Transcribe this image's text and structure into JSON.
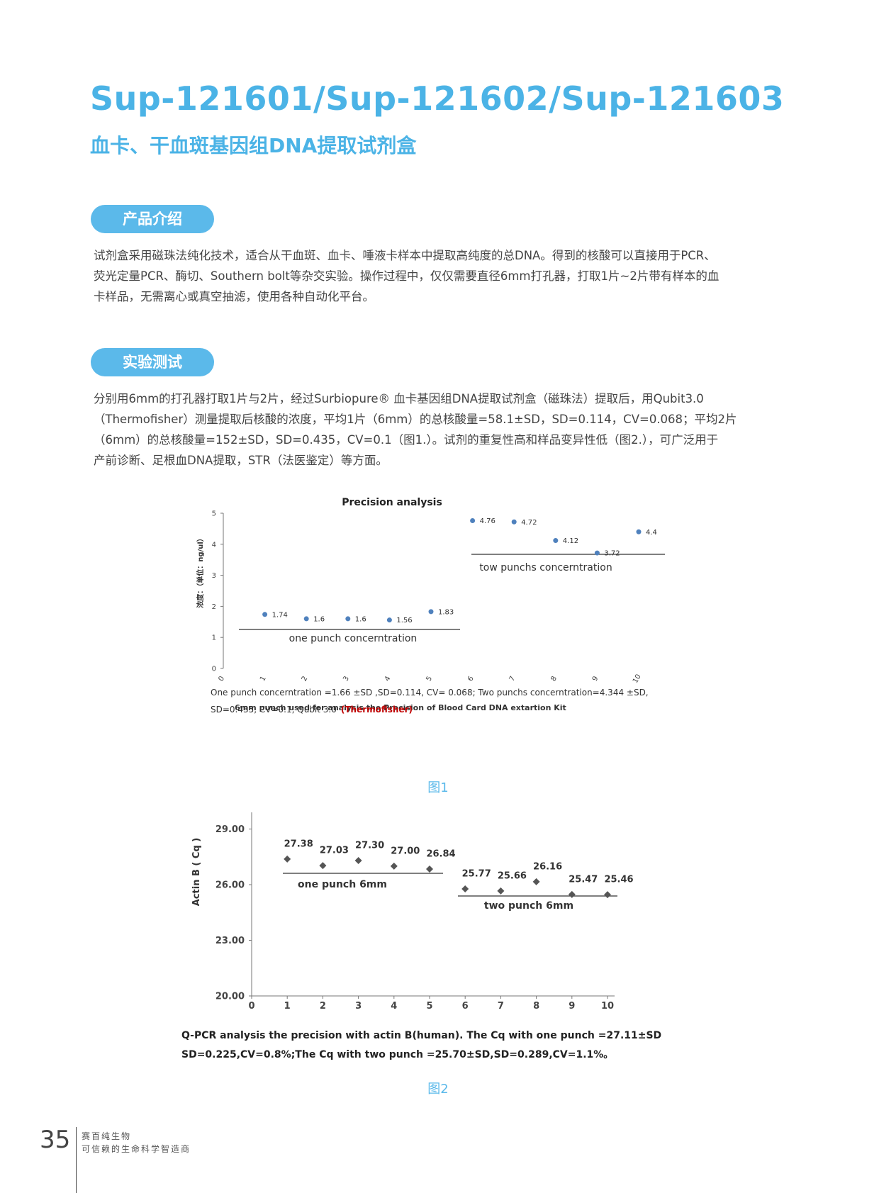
{
  "header": {
    "title": "Sup-121601/Sup-121602/Sup-121603",
    "subtitle": "血卡、干血斑基因组DNA提取试剂盒"
  },
  "sections": [
    {
      "heading": "产品介绍",
      "lines": [
        "试剂盒采用磁珠法纯化技术，适合从干血斑、血卡、唾液卡样本中提取高纯度的总DNA。得到的核酸可以直接用于PCR、",
        "荧光定量PCR、酶切、Southern bolt等杂交实验。操作过程中，仅仅需要直径6mm打孔器，打取1片~2片带有样本的血",
        "卡样品，无需离心或真空抽滤，使用各种自动化平台。"
      ]
    },
    {
      "heading": "实验测试",
      "lines": [
        "分别用6mm的打孔器打取1片与2片，经过Surbiopure® 血卡基因组DNA提取试剂盒（磁珠法）提取后，用Qubit3.0",
        "（Thermofisher）测量提取后核酸的浓度，平均1片（6mm）的总核酸量=58.1±SD，SD=0.114，CV=0.068；平均2片",
        "（6mm）的总核酸量=152±SD，SD=0.435，CV=0.1（图1.）。试剂的重复性高和样品变异性低（图2.），可广泛用于",
        "产前诊断、足根血DNA提取，STR（法医鉴定）等方面。"
      ]
    }
  ],
  "chart_data": [
    {
      "type": "scatter",
      "title": "Precision analysis",
      "y_label": "浓度：（单位：ng/ul）",
      "x_label": "6mm  punch used for analysis the Precision of Blood Card DNA extartion  Kit",
      "x": [
        1,
        2,
        3,
        4,
        5,
        6,
        7,
        8,
        9,
        10
      ],
      "values": [
        1.74,
        1.6,
        1.6,
        1.56,
        1.83,
        4.76,
        4.72,
        4.12,
        3.72,
        4.4
      ],
      "color": "#4f81bd",
      "xlim": [
        0,
        10
      ],
      "xticks": [
        0,
        1,
        2,
        3,
        4,
        5,
        6,
        7,
        8,
        9,
        10
      ],
      "ylim": [
        0,
        5
      ],
      "yticks": [
        0,
        1,
        2,
        3,
        4,
        5
      ],
      "annotations": [
        "one punch concerntration",
        "tow punchs concerntration"
      ],
      "note_lines": [
        "One punch concerntration =1.66 ±SD ,SD=0.114, CV= 0.068; Two punchs concerntration=4.344 ±SD,",
        "SD=0.435, CV=0.1,  Qubit 3.0"
      ],
      "note_highlight": "(Thermofisher)"
    },
    {
      "type": "scatter",
      "y_label": "Actin B ( Cq )",
      "x": [
        1,
        2,
        3,
        4,
        5,
        6,
        7,
        8,
        9,
        10
      ],
      "values": [
        27.38,
        27.03,
        27.3,
        27.0,
        26.84,
        25.77,
        25.66,
        26.16,
        25.47,
        25.46
      ],
      "value_labels": [
        "27.38",
        "27.03",
        "27.30",
        "27.00",
        "26.84",
        "25.77",
        "25.66",
        "26.16",
        "25.47",
        "25.46"
      ],
      "color": "#555555",
      "xlim": [
        0,
        10
      ],
      "xticks": [
        0,
        1,
        2,
        3,
        4,
        5,
        6,
        7,
        8,
        9,
        10
      ],
      "ylim": [
        20,
        29.9
      ],
      "yticks": [
        {
          "value": 20,
          "label": "20.00"
        },
        {
          "value": 23,
          "label": "23.00"
        },
        {
          "value": 26,
          "label": "26.00"
        },
        {
          "value": 29,
          "label": "29.00"
        }
      ],
      "annotations": [
        "one punch 6mm",
        "two punch 6mm"
      ],
      "caption_lines": [
        "Q-PCR analysis the precision with actin B(human). The Cq with one punch =27.11±SD,",
        "SD=0.225,CV=0.8%;The Cq with two punch =25.70±SD,SD=0.289,CV=1.1%。"
      ]
    }
  ],
  "figure_captions": [
    "图1",
    "图2"
  ],
  "footer": {
    "page_number": "35",
    "company": "赛百纯生物",
    "slogan": "可信赖的生命科学智造商"
  }
}
